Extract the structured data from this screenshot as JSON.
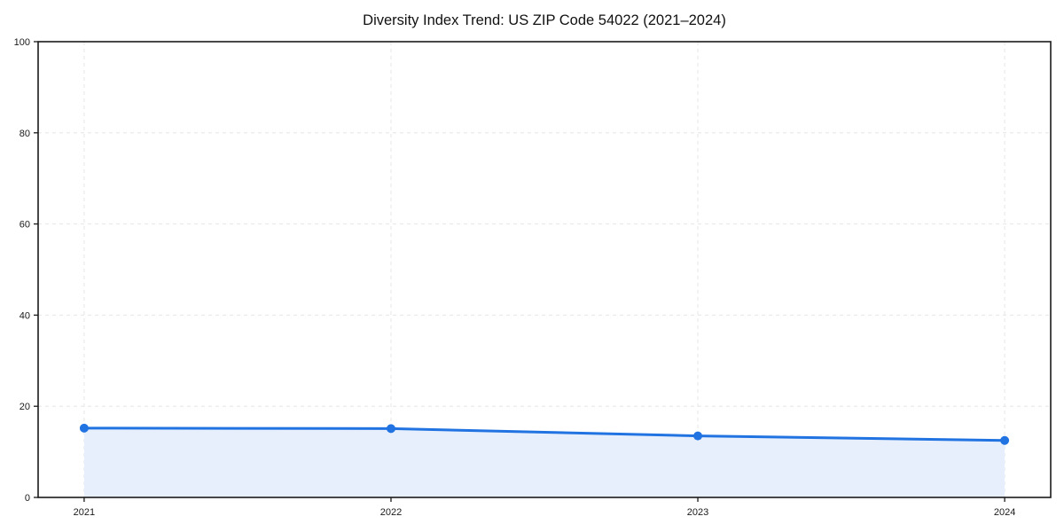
{
  "chart_data": {
    "type": "line",
    "title": "Diversity Index Trend: US ZIP Code 54022 (2021–2024)",
    "categories": [
      "2021",
      "2022",
      "2023",
      "2024"
    ],
    "series": [
      {
        "name": "Diversity Index",
        "values": [
          15.2,
          15.1,
          13.5,
          12.5
        ]
      }
    ],
    "xlabel": "",
    "ylabel": "",
    "ylim": [
      0,
      100
    ],
    "yticks": [
      0,
      20,
      40,
      60,
      80,
      100
    ],
    "grid": {
      "show": true,
      "style": "dashed",
      "axes": "both"
    },
    "legend_position": "none",
    "area_fill": true,
    "marker": "circle",
    "colors": {
      "line": "#2173e2",
      "marker": "#2173e2",
      "area": "#e8effc",
      "grid": "#e6e6e6",
      "spine": "#1a1a1a",
      "tick": "#1a1a1a",
      "background": "#ffffff"
    }
  }
}
